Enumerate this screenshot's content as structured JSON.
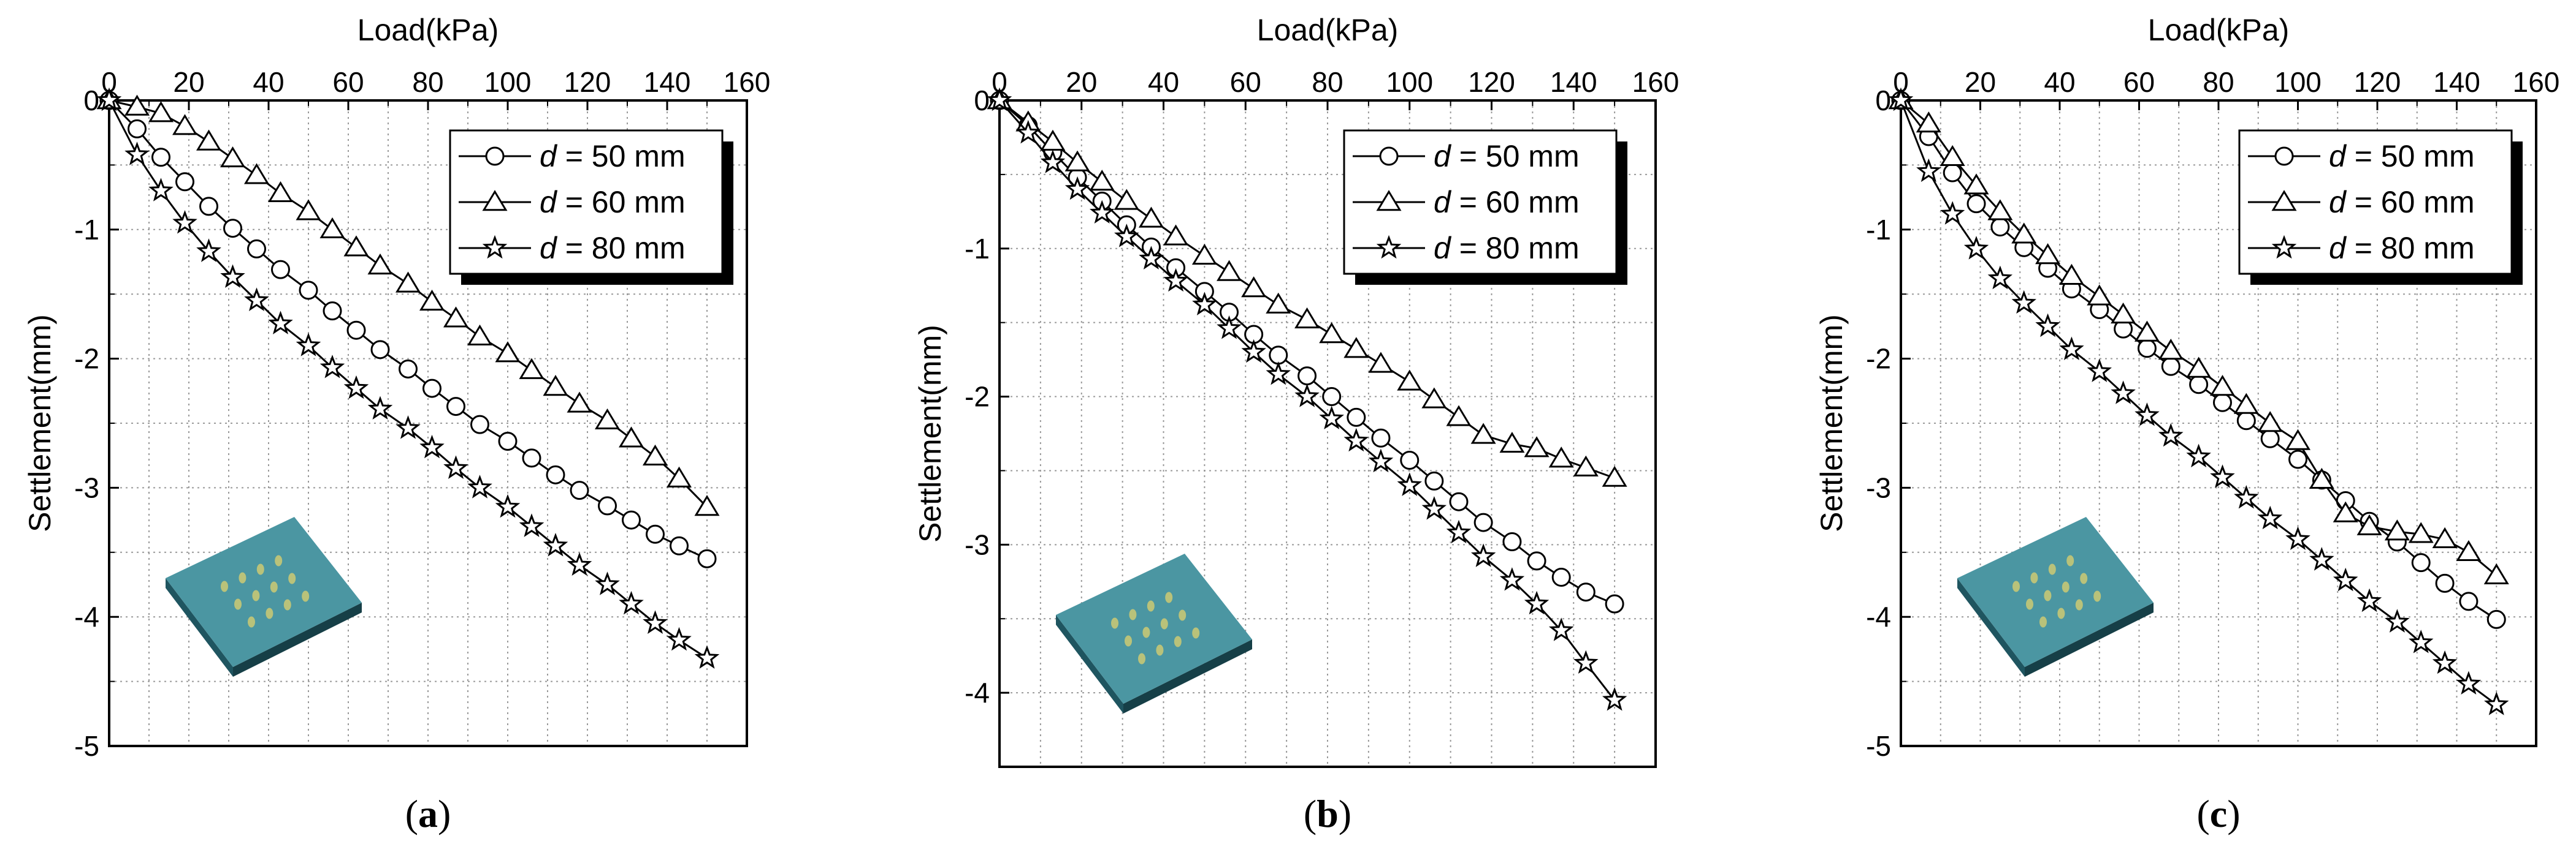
{
  "chart_data": [
    {
      "type": "line",
      "panel": "a",
      "caption": "(a)",
      "xlabel": "Load(kPa)",
      "ylabel": "Settlement(mm)",
      "xlim": [
        0,
        160
      ],
      "ylim": [
        -5,
        0
      ],
      "xticks": [
        0,
        20,
        40,
        60,
        80,
        100,
        120,
        140,
        160
      ],
      "yticks": [
        0,
        -1,
        -2,
        -3,
        -4,
        -5
      ],
      "legend_position": "top-right",
      "legend_prefix": "d",
      "grid": true,
      "series": [
        {
          "name": "d = 50 mm",
          "label_value": "= 50 mm",
          "marker": "circle",
          "x": [
            0,
            7,
            13,
            19,
            25,
            31,
            37,
            43,
            50,
            56,
            62,
            68,
            75,
            81,
            87,
            93,
            100,
            106,
            112,
            118,
            125,
            131,
            137,
            143,
            150
          ],
          "y": [
            0,
            -0.22,
            -0.44,
            -0.63,
            -0.82,
            -0.99,
            -1.15,
            -1.31,
            -1.47,
            -1.63,
            -1.78,
            -1.93,
            -2.08,
            -2.23,
            -2.37,
            -2.51,
            -2.64,
            -2.77,
            -2.9,
            -3.02,
            -3.14,
            -3.25,
            -3.36,
            -3.45,
            -3.55
          ]
        },
        {
          "name": "d = 60 mm",
          "label_value": "= 60 mm",
          "marker": "triangle",
          "x": [
            0,
            7,
            13,
            19,
            25,
            31,
            37,
            43,
            50,
            56,
            62,
            68,
            75,
            81,
            87,
            93,
            100,
            106,
            112,
            118,
            125,
            131,
            137,
            143,
            150
          ],
          "y": [
            0,
            -0.05,
            -0.1,
            -0.2,
            -0.32,
            -0.45,
            -0.58,
            -0.72,
            -0.86,
            -1.0,
            -1.14,
            -1.28,
            -1.42,
            -1.56,
            -1.69,
            -1.83,
            -1.96,
            -2.09,
            -2.22,
            -2.35,
            -2.48,
            -2.62,
            -2.76,
            -2.93,
            -3.15
          ]
        },
        {
          "name": "d = 80 mm",
          "label_value": "= 80 mm",
          "marker": "star",
          "x": [
            0,
            7,
            13,
            19,
            25,
            31,
            37,
            43,
            50,
            56,
            62,
            68,
            75,
            81,
            87,
            93,
            100,
            106,
            112,
            118,
            125,
            131,
            137,
            143,
            150
          ],
          "y": [
            0,
            -0.42,
            -0.7,
            -0.95,
            -1.17,
            -1.37,
            -1.55,
            -1.73,
            -1.9,
            -2.07,
            -2.23,
            -2.39,
            -2.54,
            -2.69,
            -2.85,
            -3.0,
            -3.15,
            -3.3,
            -3.45,
            -3.6,
            -3.75,
            -3.9,
            -4.05,
            -4.18,
            -4.32
          ]
        }
      ]
    },
    {
      "type": "line",
      "panel": "b",
      "caption": "(b)",
      "xlabel": "Load(kPa)",
      "ylabel": "Settlement(mm)",
      "xlim": [
        0,
        160
      ],
      "ylim": [
        -4.5,
        0
      ],
      "xticks": [
        0,
        20,
        40,
        60,
        80,
        100,
        120,
        140,
        160
      ],
      "yticks": [
        0,
        -1,
        -2,
        -3,
        -4
      ],
      "legend_position": "top-right",
      "legend_prefix": "d",
      "grid": true,
      "series": [
        {
          "name": "d = 50 mm",
          "label_value": "= 50 mm",
          "marker": "circle",
          "x": [
            0,
            7,
            13,
            19,
            25,
            31,
            37,
            43,
            50,
            56,
            62,
            68,
            75,
            81,
            87,
            93,
            100,
            106,
            112,
            118,
            125,
            131,
            137,
            143,
            150
          ],
          "y": [
            0,
            -0.17,
            -0.35,
            -0.52,
            -0.68,
            -0.84,
            -0.99,
            -1.13,
            -1.29,
            -1.43,
            -1.58,
            -1.72,
            -1.86,
            -2.0,
            -2.14,
            -2.28,
            -2.43,
            -2.57,
            -2.71,
            -2.85,
            -2.98,
            -3.11,
            -3.22,
            -3.32,
            -3.4
          ]
        },
        {
          "name": "d = 60 mm",
          "label_value": "= 60 mm",
          "marker": "triangle",
          "x": [
            0,
            7,
            13,
            19,
            25,
            31,
            37,
            43,
            50,
            56,
            62,
            68,
            75,
            81,
            87,
            93,
            100,
            106,
            112,
            118,
            125,
            131,
            137,
            143,
            150
          ],
          "y": [
            0,
            -0.15,
            -0.28,
            -0.42,
            -0.55,
            -0.68,
            -0.8,
            -0.92,
            -1.05,
            -1.16,
            -1.27,
            -1.38,
            -1.48,
            -1.58,
            -1.68,
            -1.78,
            -1.9,
            -2.02,
            -2.14,
            -2.26,
            -2.32,
            -2.35,
            -2.42,
            -2.48,
            -2.55
          ]
        },
        {
          "name": "d = 80 mm",
          "label_value": "= 80 mm",
          "marker": "star",
          "x": [
            0,
            7,
            13,
            19,
            25,
            31,
            37,
            43,
            50,
            56,
            62,
            68,
            75,
            81,
            87,
            93,
            100,
            106,
            112,
            118,
            125,
            131,
            137,
            143,
            150
          ],
          "y": [
            0,
            -0.22,
            -0.42,
            -0.6,
            -0.76,
            -0.92,
            -1.07,
            -1.22,
            -1.38,
            -1.54,
            -1.7,
            -1.85,
            -2.0,
            -2.15,
            -2.3,
            -2.44,
            -2.6,
            -2.76,
            -2.92,
            -3.08,
            -3.24,
            -3.4,
            -3.58,
            -3.8,
            -4.05
          ]
        }
      ]
    },
    {
      "type": "line",
      "panel": "c",
      "caption": "(c)",
      "xlabel": "Load(kPa)",
      "ylabel": "Settlement(mm)",
      "xlim": [
        0,
        160
      ],
      "ylim": [
        -5,
        0
      ],
      "xticks": [
        0,
        20,
        40,
        60,
        80,
        100,
        120,
        140,
        160
      ],
      "yticks": [
        0,
        -1,
        -2,
        -3,
        -4,
        -5
      ],
      "legend_position": "top-right",
      "legend_prefix": "d",
      "grid": true,
      "series": [
        {
          "name": "d = 50 mm",
          "label_value": "= 50 mm",
          "marker": "circle",
          "x": [
            0,
            7,
            13,
            19,
            25,
            31,
            37,
            43,
            50,
            56,
            62,
            68,
            75,
            81,
            87,
            93,
            100,
            106,
            112,
            118,
            125,
            131,
            137,
            143,
            150
          ],
          "y": [
            0,
            -0.28,
            -0.56,
            -0.8,
            -0.98,
            -1.14,
            -1.3,
            -1.46,
            -1.62,
            -1.77,
            -1.92,
            -2.06,
            -2.2,
            -2.34,
            -2.48,
            -2.62,
            -2.78,
            -2.94,
            -3.1,
            -3.26,
            -3.42,
            -3.58,
            -3.74,
            -3.88,
            -4.02
          ]
        },
        {
          "name": "d = 60 mm",
          "label_value": "= 60 mm",
          "marker": "triangle",
          "x": [
            0,
            7,
            13,
            19,
            25,
            31,
            37,
            43,
            50,
            56,
            62,
            68,
            75,
            81,
            87,
            93,
            100,
            106,
            112,
            118,
            125,
            131,
            137,
            143,
            150
          ],
          "y": [
            0,
            -0.18,
            -0.44,
            -0.66,
            -0.86,
            -1.04,
            -1.2,
            -1.36,
            -1.52,
            -1.66,
            -1.8,
            -1.94,
            -2.08,
            -2.22,
            -2.36,
            -2.5,
            -2.64,
            -2.94,
            -3.2,
            -3.3,
            -3.34,
            -3.36,
            -3.4,
            -3.5,
            -3.68
          ]
        },
        {
          "name": "d = 80 mm",
          "label_value": "= 80 mm",
          "marker": "star",
          "x": [
            0,
            7,
            13,
            19,
            25,
            31,
            37,
            43,
            50,
            56,
            62,
            68,
            75,
            81,
            87,
            93,
            100,
            106,
            112,
            118,
            125,
            131,
            137,
            143,
            150
          ],
          "y": [
            0,
            -0.55,
            -0.88,
            -1.15,
            -1.38,
            -1.57,
            -1.75,
            -1.93,
            -2.1,
            -2.27,
            -2.44,
            -2.6,
            -2.76,
            -2.92,
            -3.08,
            -3.24,
            -3.4,
            -3.56,
            -3.72,
            -3.88,
            -4.04,
            -4.2,
            -4.36,
            -4.52,
            -4.68
          ]
        }
      ]
    }
  ]
}
